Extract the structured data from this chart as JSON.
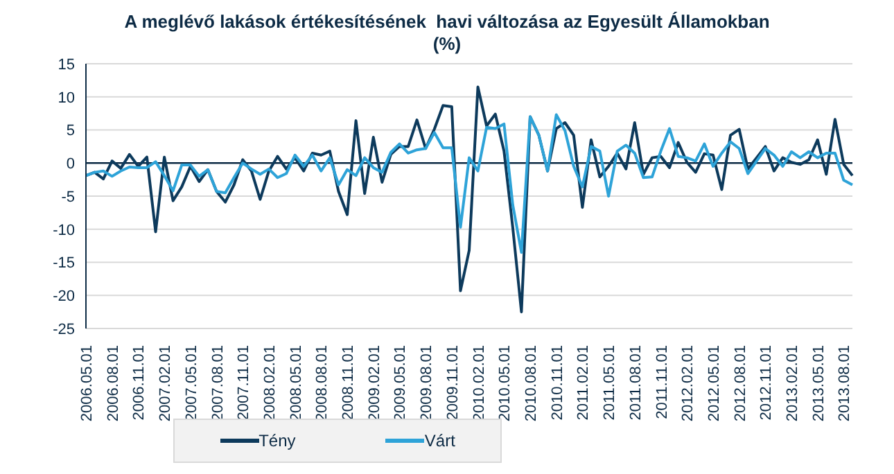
{
  "chart_data": {
    "type": "line",
    "title": "A meglévő lakások értékesítésének  havi változása az Egyesült Államokban\n(%)",
    "categories": [
      "2006.05.01",
      null,
      null,
      "2006.08.01",
      null,
      null,
      "2006.11.01",
      null,
      null,
      "2007.02.01",
      null,
      null,
      "2007.05.01",
      null,
      null,
      "2007.08.01",
      null,
      null,
      "2007.11.01",
      null,
      null,
      "2008.02.01",
      null,
      null,
      "2008.05.01",
      null,
      null,
      "2008.08.01",
      null,
      null,
      "2008.11.01",
      null,
      null,
      "2009.02.01",
      null,
      null,
      "2009.05.01",
      null,
      null,
      "2009.08.01",
      null,
      null,
      "2009.11.01",
      null,
      null,
      "2010.02.01",
      null,
      null,
      "2010.05.01",
      null,
      null,
      "2010.08.01",
      null,
      null,
      "2010.11.01",
      null,
      null,
      "2011.02.01",
      null,
      null,
      "2011.05.01",
      null,
      null,
      "2011.08.01",
      null,
      null,
      "2011.11.01",
      null,
      null,
      "2012.02.01",
      null,
      null,
      "2012.05.01",
      null,
      null,
      "2012.08.01",
      null,
      null,
      "2012.11.01",
      null,
      null,
      "2013.02.01",
      null,
      null,
      "2013.05.01",
      null,
      null,
      "2013.08.01",
      null
    ],
    "series": [
      {
        "name": "Tény",
        "color": "#0d3a5c",
        "values": [
          -1.9,
          -1.4,
          -2.4,
          0.3,
          -0.8,
          1.3,
          -0.5,
          0.9,
          -10.4,
          0.9,
          -5.7,
          -3.6,
          -0.5,
          -2.8,
          -1,
          -4.3,
          -5.9,
          -3.3,
          0.5,
          -1.2,
          -5.5,
          -1.2,
          1,
          -0.9,
          0.8,
          -1.2,
          1.5,
          1.2,
          1.8,
          -4.3,
          -7.8,
          6.4,
          -4.6,
          3.9,
          -2.9,
          1.3,
          2.5,
          2.5,
          6.5,
          2.2,
          5.1,
          8.7,
          8.5,
          -19.3,
          -13.2,
          11.5,
          5.6,
          7.4,
          1.8,
          -9.7,
          -22.5,
          7,
          4.2,
          -1.2,
          5.2,
          6.1,
          4.2,
          -6.7,
          3.5,
          -2.1,
          -0.5,
          1.5,
          -0.9,
          6.1,
          -1.7,
          0.8,
          1,
          -0.7,
          3.1,
          0.1,
          -1.4,
          1.4,
          1.2,
          -4,
          4.2,
          5.1,
          -0.9,
          0.8,
          2.5,
          -1.2,
          0.8,
          0.1,
          -0.2,
          0.5,
          3.5,
          -1.7,
          6.6,
          -0.2,
          -1.9
        ]
      },
      {
        "name": "Várt",
        "color": "#2ea3d8",
        "values": [
          -1.9,
          -1.4,
          -1.2,
          -2,
          -1.2,
          -0.6,
          -0.7,
          -0.7,
          0.2,
          -1.9,
          -4.2,
          -0.3,
          -0.3,
          -2,
          -1,
          -4.3,
          -4.5,
          -2.2,
          0,
          -0.9,
          -1.7,
          -0.9,
          -2.2,
          -1.6,
          1.2,
          -0.5,
          1.2,
          -1.2,
          0.8,
          -3.3,
          -1,
          -1.9,
          0.8,
          -0.7,
          -1.4,
          1.6,
          2.9,
          1.5,
          2,
          2.2,
          4.6,
          2.3,
          2.3,
          -9.7,
          0.8,
          -1.2,
          5.4,
          5.2,
          5.9,
          -6.3,
          -13.5,
          7,
          4.2,
          -1.2,
          7.3,
          4.9,
          -0.5,
          -3.6,
          2.5,
          1.8,
          -5,
          1.8,
          2.7,
          1.5,
          -2.2,
          -2.1,
          1.8,
          5.2,
          1,
          0.8,
          0.3,
          2.9,
          -0.5,
          1.5,
          3.2,
          2.2,
          -1.6,
          0.3,
          2.2,
          1.2,
          -0.5,
          1.7,
          0.8,
          1.7,
          0.8,
          1.5,
          1.5,
          -2.6,
          -3.3
        ]
      }
    ],
    "ylim": [
      -25,
      15
    ],
    "yticks": [
      -25,
      -20,
      -15,
      -10,
      -5,
      0,
      5,
      10,
      15
    ],
    "ref_lines": [
      {
        "axis": "y",
        "value": 0,
        "color": "#0d2b45"
      }
    ],
    "grid": "y",
    "legend": "bottom",
    "marker": "none",
    "line_style": "solid"
  }
}
